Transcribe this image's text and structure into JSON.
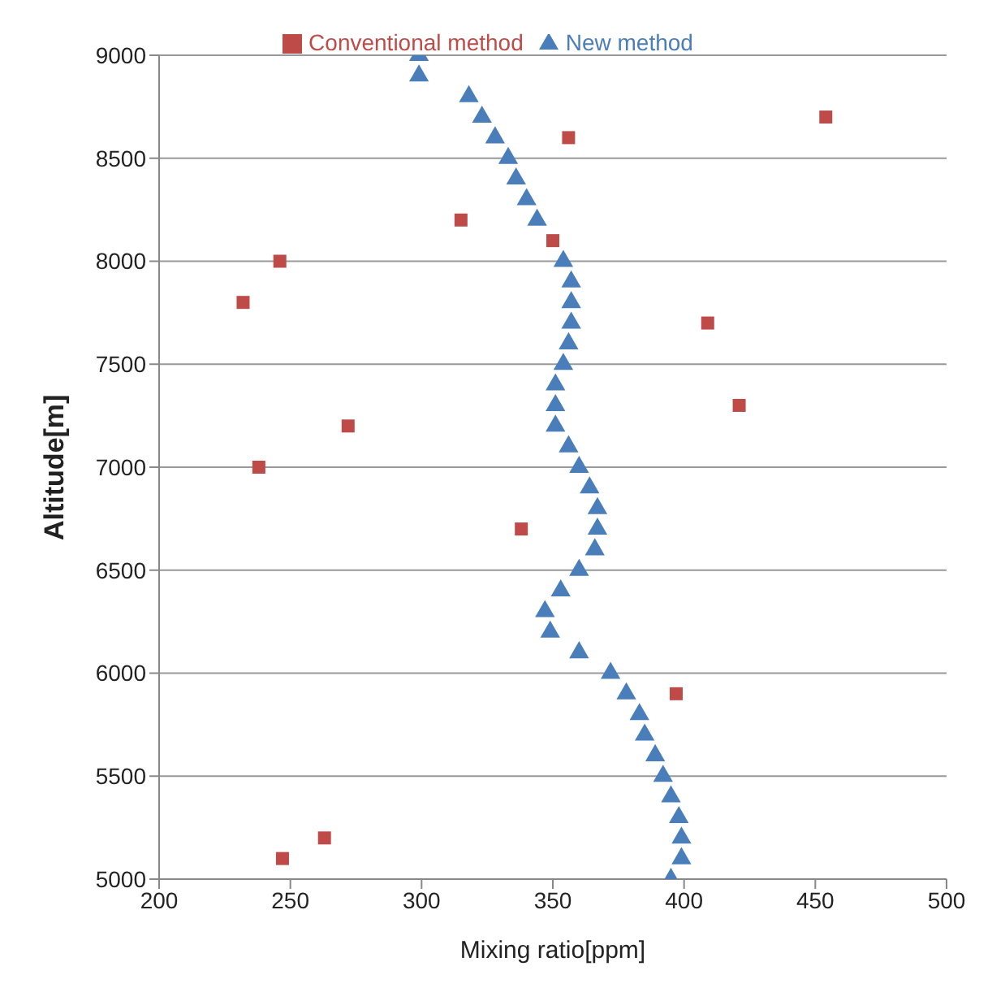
{
  "chart_data": {
    "type": "scatter",
    "xlabel": "Mixing ratio[ppm]",
    "ylabel": "Altitude[m]",
    "xlim": [
      200,
      500
    ],
    "xticks": [
      200,
      250,
      300,
      350,
      400,
      450,
      500
    ],
    "ylim": [
      5000,
      9000
    ],
    "yticks": [
      5000,
      5500,
      6000,
      6500,
      7000,
      7500,
      8000,
      8500,
      9000
    ],
    "grid": "y",
    "legend": "top",
    "series": [
      {
        "name": "New method",
        "color": "#4a7ebb",
        "marker": "triangle",
        "x": [
          299,
          299,
          318,
          323,
          328,
          333,
          336,
          340,
          344,
          348,
          354,
          357,
          357,
          357,
          356,
          354,
          351,
          351,
          351,
          356,
          360,
          364,
          367,
          367,
          366,
          360,
          353,
          347,
          349,
          360,
          372,
          378,
          383,
          385,
          389,
          392,
          395,
          398,
          399,
          399,
          395
        ],
        "values": [
          9000,
          8900,
          8800,
          8700,
          8600,
          8500,
          8400,
          8300,
          8200,
          null,
          8000,
          7900,
          7800,
          7700,
          7600,
          7500,
          7400,
          7300,
          7200,
          7100,
          7000,
          6900,
          6800,
          6700,
          6600,
          6500,
          6400,
          6300,
          6200,
          6100,
          6000,
          5900,
          5800,
          5700,
          5600,
          5500,
          5400,
          5300,
          5200,
          5100,
          5000
        ]
      },
      {
        "name": "Conventional method",
        "color": "#be4b48",
        "marker": "square",
        "x": [
          454,
          356,
          315,
          350,
          246,
          232,
          409,
          421,
          272,
          238,
          338,
          397,
          263,
          247
        ],
        "values": [
          8700,
          8600,
          8200,
          8100,
          8000,
          7800,
          7700,
          7300,
          7200,
          7000,
          6700,
          5900,
          5200,
          5100
        ]
      }
    ]
  }
}
